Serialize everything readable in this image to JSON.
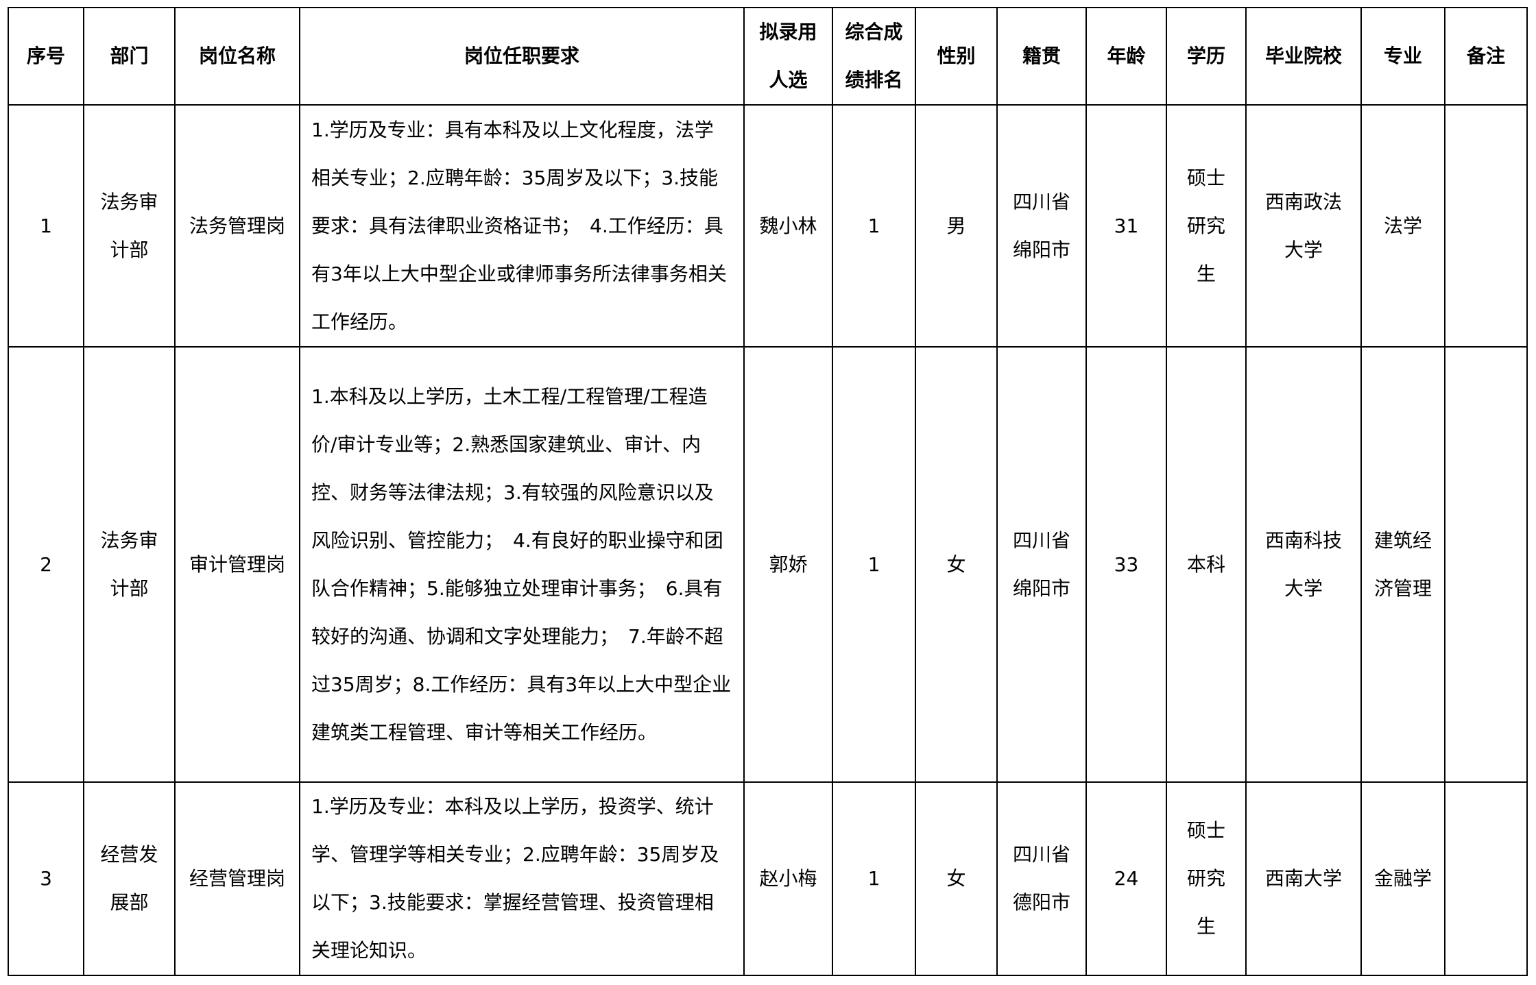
{
  "headers": [
    "序号",
    "部门",
    "岗位名称",
    "岗位任职要求",
    "拟录用人选",
    "综合成绩排名",
    "性别",
    "籍贯",
    "年龄",
    "学历",
    "毕业院校",
    "专业",
    "备注"
  ],
  "rows": [
    {
      "no": "1",
      "dept": "法务审计部",
      "position": "法务管理岗",
      "requirements": "1.学历及专业：具有本科及以上文化程度，法学相关专业；2.应聘年龄：35周岁及以下；3.技能要求：具有法律职业资格证书；　4.工作经历：具有3年以上大中型企业或律师事务所法律事务相关工作经历。",
      "candidate": "魏小林",
      "rank": "1",
      "gender": "男",
      "origin": "四川省绵阳市",
      "age": "31",
      "education": "硕士研究生",
      "school": "西南政法大学",
      "major": "法学",
      "remark": ""
    },
    {
      "no": "2",
      "dept": "法务审计部",
      "position": "审计管理岗",
      "requirements": "1.本科及以上学历，土木工程/工程管理/工程造价/审计专业等；2.熟悉国家建筑业、审计、内控、财务等法律法规；3.有较强的风险意识以及风险识别、管控能力；　4.有良好的职业操守和团队合作精神；5.能够独立处理审计事务；　6.具有较好的沟通、协调和文字处理能力；　7.年龄不超过35周岁；8.工作经历：具有3年以上大中型企业建筑类工程管理、审计等相关工作经历。",
      "candidate": "郭娇",
      "rank": "1",
      "gender": "女",
      "origin": "四川省绵阳市",
      "age": "33",
      "education": "本科",
      "school": "西南科技大学",
      "major": "建筑经济管理",
      "remark": ""
    },
    {
      "no": "3",
      "dept": "经营发展部",
      "position": "经营管理岗",
      "requirements": "1.学历及专业：本科及以上学历，投资学、统计学、管理学等相关专业；2.应聘年龄：35周岁及以下；3.技能要求：掌握经营管理、投资管理相关理论知识。",
      "candidate": "赵小梅",
      "rank": "1",
      "gender": "女",
      "origin": "四川省德阳市",
      "age": "24",
      "education": "硕士研究生",
      "school": "西南大学",
      "major": "金融学",
      "remark": ""
    }
  ]
}
